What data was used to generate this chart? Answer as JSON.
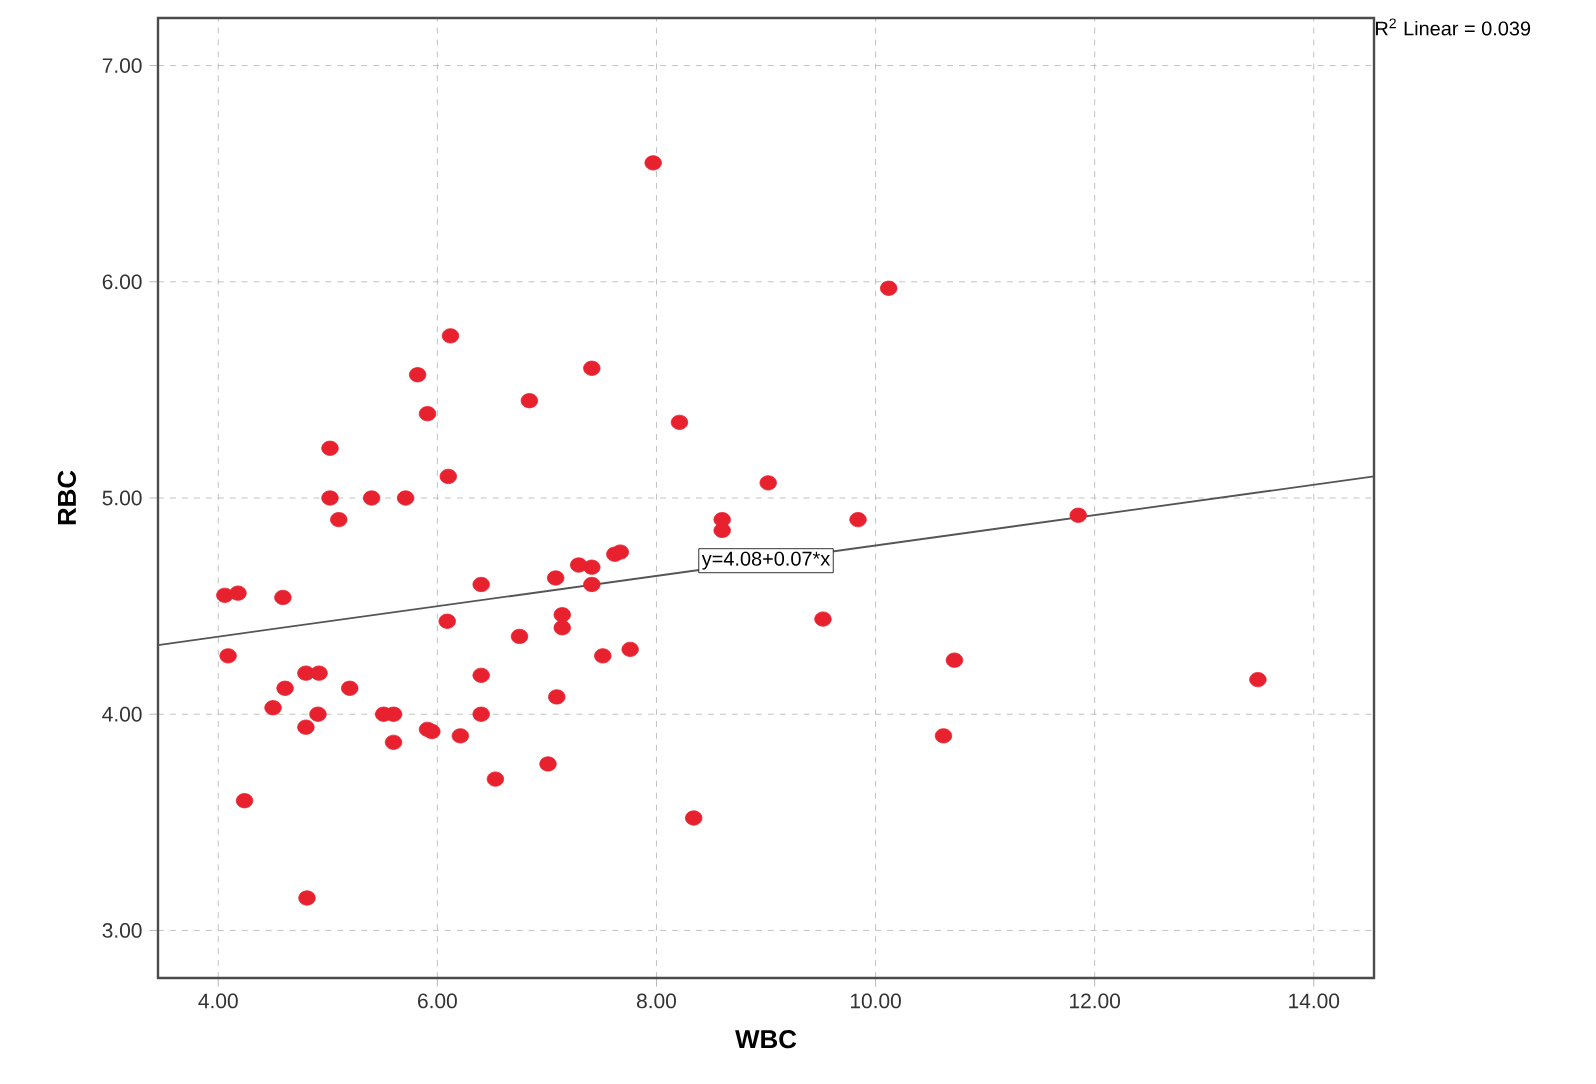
{
  "chart_data": {
    "type": "scatter",
    "xlabel": "WBC",
    "ylabel": "RBC",
    "xlim": [
      3.45,
      14.55
    ],
    "ylim": [
      2.78,
      7.22
    ],
    "xticks": [
      {
        "value": 4,
        "label": "4.00"
      },
      {
        "value": 6,
        "label": "6.00"
      },
      {
        "value": 8,
        "label": "8.00"
      },
      {
        "value": 10,
        "label": "10.00"
      },
      {
        "value": 12,
        "label": "12.00"
      },
      {
        "value": 14,
        "label": "14.00"
      }
    ],
    "yticks": [
      {
        "value": 3,
        "label": "3.00"
      },
      {
        "value": 4,
        "label": "4.00"
      },
      {
        "value": 5,
        "label": "5.00"
      },
      {
        "value": 6,
        "label": "6.00"
      },
      {
        "value": 7,
        "label": "7.00"
      }
    ],
    "grid": true,
    "marker": "circle",
    "series": [
      {
        "color": "#e8212e",
        "x": [
          7.97,
          6.12,
          5.82,
          5.91,
          6.84,
          7.41,
          8.21,
          5.02,
          5.02,
          5.4,
          5.71,
          6.1,
          5.1,
          9.02,
          8.6,
          8.6,
          10.12,
          9.84,
          11.85,
          4.06,
          4.18,
          4.59,
          4.09,
          6.09,
          6.4,
          6.75,
          7.08,
          7.14,
          7.14,
          7.29,
          7.41,
          7.41,
          7.62,
          7.67,
          7.51,
          7.76,
          4.61,
          4.5,
          4.8,
          4.92,
          5.2,
          4.8,
          4.91,
          5.51,
          5.6,
          5.6,
          5.91,
          5.95,
          6.21,
          6.4,
          6.4,
          7.09,
          7.01,
          6.53,
          4.24,
          4.81,
          8.34,
          9.52,
          10.72,
          10.62,
          13.49
        ],
        "values": [
          6.55,
          5.75,
          5.57,
          5.39,
          5.45,
          5.6,
          5.35,
          5.23,
          5.0,
          5.0,
          5.0,
          5.1,
          4.9,
          5.07,
          4.9,
          4.85,
          5.97,
          4.9,
          4.92,
          4.55,
          4.56,
          4.54,
          4.27,
          4.43,
          4.6,
          4.36,
          4.63,
          4.46,
          4.4,
          4.69,
          4.68,
          4.6,
          4.74,
          4.75,
          4.27,
          4.3,
          4.12,
          4.03,
          4.19,
          4.19,
          4.12,
          3.94,
          4.0,
          4.0,
          4.0,
          3.87,
          3.93,
          3.92,
          3.9,
          4.18,
          4.0,
          4.08,
          3.77,
          3.7,
          3.6,
          3.15,
          3.52,
          4.44,
          4.25,
          3.9,
          4.16
        ]
      },
      {
        "type": "line",
        "color": "#555555",
        "marker": "none",
        "x": [
          3.45,
          14.55
        ],
        "values": [
          4.32,
          5.1
        ]
      }
    ],
    "annotations": [
      {
        "text": "y=4.08+0.07*x",
        "x": 9.0,
        "y": 4.71
      },
      "R$^{2}$ Linear = 0.039"
    ]
  }
}
